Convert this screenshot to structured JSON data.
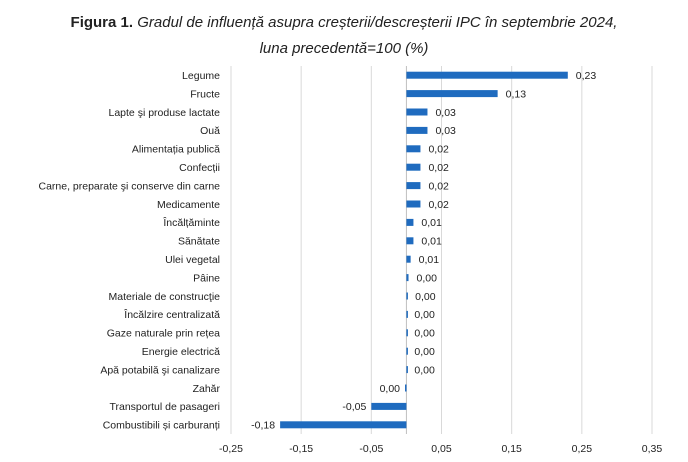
{
  "title": {
    "lead": "Figura 1.",
    "rest": "Gradul de influență asupra creșterii/descreșterii IPC în septembrie 2024,",
    "line2": "luna precedentă=100 (%)"
  },
  "colors": {
    "bar": "#1f6bbf",
    "grid": "#d9d9d9",
    "zero_axis": "#bfbfbf"
  },
  "chart_data": {
    "type": "bar",
    "orientation": "horizontal",
    "categories": [
      "Legume",
      "Fructe",
      "Lapte şi produse lactate",
      "Ouă",
      "Alimentația publică",
      "Confecții",
      "Carne, preparate şi conserve din carne",
      "Medicamente",
      "Încălțăminte",
      "Sănătate",
      "Ulei vegetal",
      "Pâine",
      "Materiale de construcţie",
      "Încălzire centralizată",
      "Gaze naturale prin rețea",
      "Energie electrică",
      "Apă potabilă şi canalizare",
      "Zahăr",
      "Transportul de pasageri",
      "Combustibili și carburanți"
    ],
    "values": [
      0.23,
      0.13,
      0.03,
      0.03,
      0.02,
      0.02,
      0.02,
      0.02,
      0.01,
      0.01,
      0.006,
      0.003,
      0.001,
      0,
      0,
      0,
      0,
      -0.002,
      -0.05,
      -0.18
    ],
    "value_labels": [
      "0,23",
      "0,13",
      "0,03",
      "0,03",
      "0,02",
      "0,02",
      "0,02",
      "0,02",
      "0,01",
      "0,01",
      "0,01",
      "0,00",
      "0,00",
      "0,00",
      "0,00",
      "0,00",
      "0,00",
      "0,00",
      "-0,05",
      "-0,18"
    ],
    "xlim": [
      -0.25,
      0.35
    ],
    "xticks": [
      -0.25,
      -0.15,
      -0.05,
      0.05,
      0.15,
      0.25,
      0.35
    ],
    "xtick_labels": [
      "-0,25",
      "-0,15",
      "-0,05",
      "0,05",
      "0,15",
      "0,25",
      "0,35"
    ],
    "grid": true
  }
}
